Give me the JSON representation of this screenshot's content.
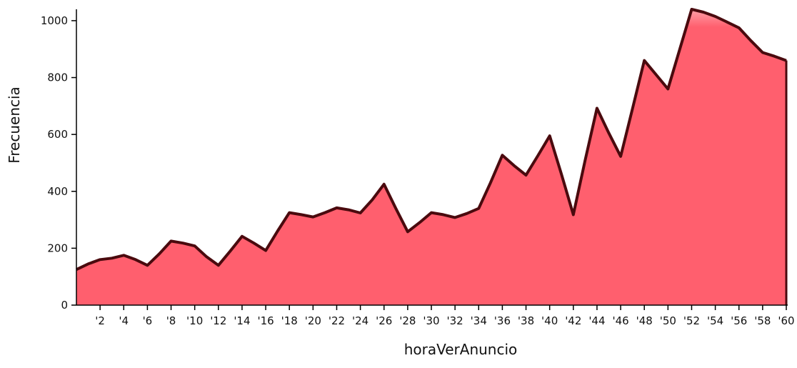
{
  "chart_data": {
    "type": "area",
    "xlabel": "horaVerAnuncio",
    "ylabel": "Frecuencia",
    "x": [
      0,
      1,
      2,
      3,
      4,
      5,
      6,
      7,
      8,
      9,
      10,
      11,
      12,
      13,
      14,
      15,
      16,
      17,
      18,
      19,
      20,
      21,
      22,
      23,
      24,
      25,
      26,
      27,
      28,
      29,
      30,
      31,
      32,
      33,
      34,
      35,
      36,
      37,
      38,
      39,
      40,
      41,
      42,
      43,
      44,
      45,
      46,
      47,
      48,
      49,
      50,
      51,
      52,
      53,
      54,
      55,
      56,
      57,
      58,
      59,
      60
    ],
    "values": [
      125,
      145,
      160,
      165,
      175,
      160,
      140,
      180,
      225,
      218,
      208,
      170,
      140,
      190,
      242,
      218,
      192,
      260,
      325,
      318,
      310,
      325,
      342,
      335,
      324,
      370,
      425,
      340,
      258,
      290,
      325,
      318,
      308,
      322,
      340,
      430,
      527,
      490,
      457,
      525,
      595,
      460,
      318,
      510,
      692,
      605,
      523,
      690,
      860,
      810,
      760,
      900,
      1040,
      1030,
      1015,
      995,
      975,
      930,
      888,
      875,
      860
    ],
    "xticks": [
      "'2",
      "'4",
      "'6",
      "'8",
      "'10",
      "'12",
      "'14",
      "'16",
      "'18",
      "'20",
      "'22",
      "'24",
      "'26",
      "'28",
      "'30",
      "'32",
      "'34",
      "'36",
      "'38",
      "'40",
      "'42",
      "'44",
      "'46",
      "'48",
      "'50",
      "'52",
      "'54",
      "'56",
      "'58",
      "'60"
    ],
    "xtick_positions": [
      2,
      4,
      6,
      8,
      10,
      12,
      14,
      16,
      18,
      20,
      22,
      24,
      26,
      28,
      30,
      32,
      34,
      36,
      38,
      40,
      42,
      44,
      46,
      48,
      50,
      52,
      54,
      56,
      58,
      60
    ],
    "yticks": [
      0,
      200,
      400,
      600,
      800,
      1000
    ],
    "ylim": [
      0,
      1040
    ],
    "xlim": [
      0,
      60
    ],
    "grid": false,
    "colors": {
      "fill": "#ff5f6e",
      "fill_light": "#ffa0a8",
      "line": "#4a0a0e",
      "axis": "#000000"
    }
  }
}
